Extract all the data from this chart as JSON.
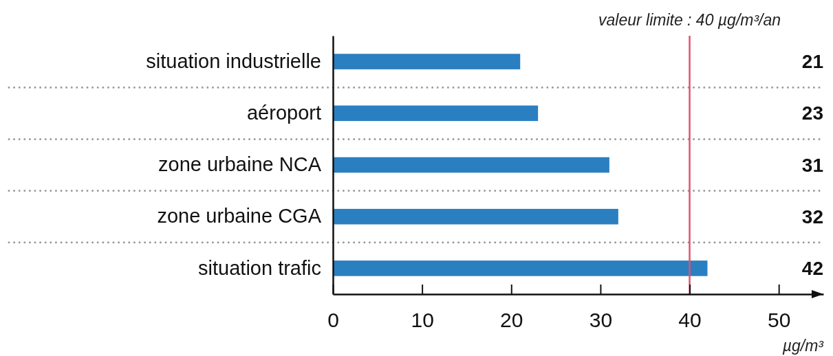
{
  "chart_data": {
    "type": "bar",
    "orientation": "horizontal",
    "categories": [
      "situation industrielle",
      "aéroport",
      "zone urbaine NCA",
      "zone urbaine CGA",
      "situation trafic"
    ],
    "values": [
      21,
      23,
      31,
      32,
      42
    ],
    "color": "#2a7fc1",
    "xlabel": "µg/m³",
    "xlim": [
      0,
      55
    ],
    "xticks": [
      0,
      10,
      20,
      30,
      40,
      50
    ],
    "grid": "y",
    "data_labels": true,
    "ref_lines": [
      {
        "axis": "x",
        "value": 40,
        "label": "valeur limite : 40 µg/m³/an",
        "color": "#e0536d"
      }
    ]
  }
}
